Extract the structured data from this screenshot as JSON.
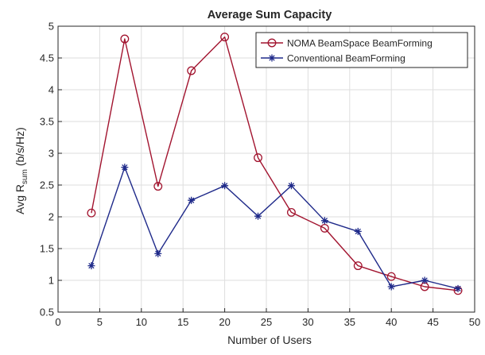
{
  "chart_data": {
    "type": "line",
    "title": "Average Sum Capacity",
    "xlabel": "Number of Users",
    "ylabel": {
      "main": "Avg R",
      "sub": "sum",
      "unit": " (b/s/Hz)"
    },
    "xlim": [
      0,
      50
    ],
    "ylim": [
      0.5,
      5
    ],
    "xticks": [
      0,
      5,
      10,
      15,
      20,
      25,
      30,
      35,
      40,
      45,
      50
    ],
    "yticks": [
      0.5,
      1,
      1.5,
      2,
      2.5,
      3,
      3.5,
      4,
      4.5,
      5
    ],
    "ytick_labels": [
      "0.5",
      "1",
      "1.5",
      "2",
      "2.5",
      "3",
      "3.5",
      "4",
      "4.5",
      "5"
    ],
    "grid": true,
    "legend_position": "top-right",
    "x": [
      4,
      8,
      12,
      16,
      20,
      24,
      28,
      32,
      36,
      40,
      44,
      48
    ],
    "series": [
      {
        "name": "NOMA BeamSpace BeamForming",
        "color": "#a2142f",
        "marker": "circle",
        "values": [
          2.06,
          4.8,
          2.48,
          4.3,
          4.83,
          2.93,
          2.07,
          1.82,
          1.23,
          1.06,
          0.9,
          0.84
        ]
      },
      {
        "name": "Conventional BeamForming",
        "color": "#1f2a8a",
        "marker": "star",
        "values": [
          1.23,
          2.78,
          1.42,
          2.26,
          2.49,
          2.01,
          2.49,
          1.94,
          1.77,
          0.9,
          1.0,
          0.87
        ]
      }
    ]
  }
}
